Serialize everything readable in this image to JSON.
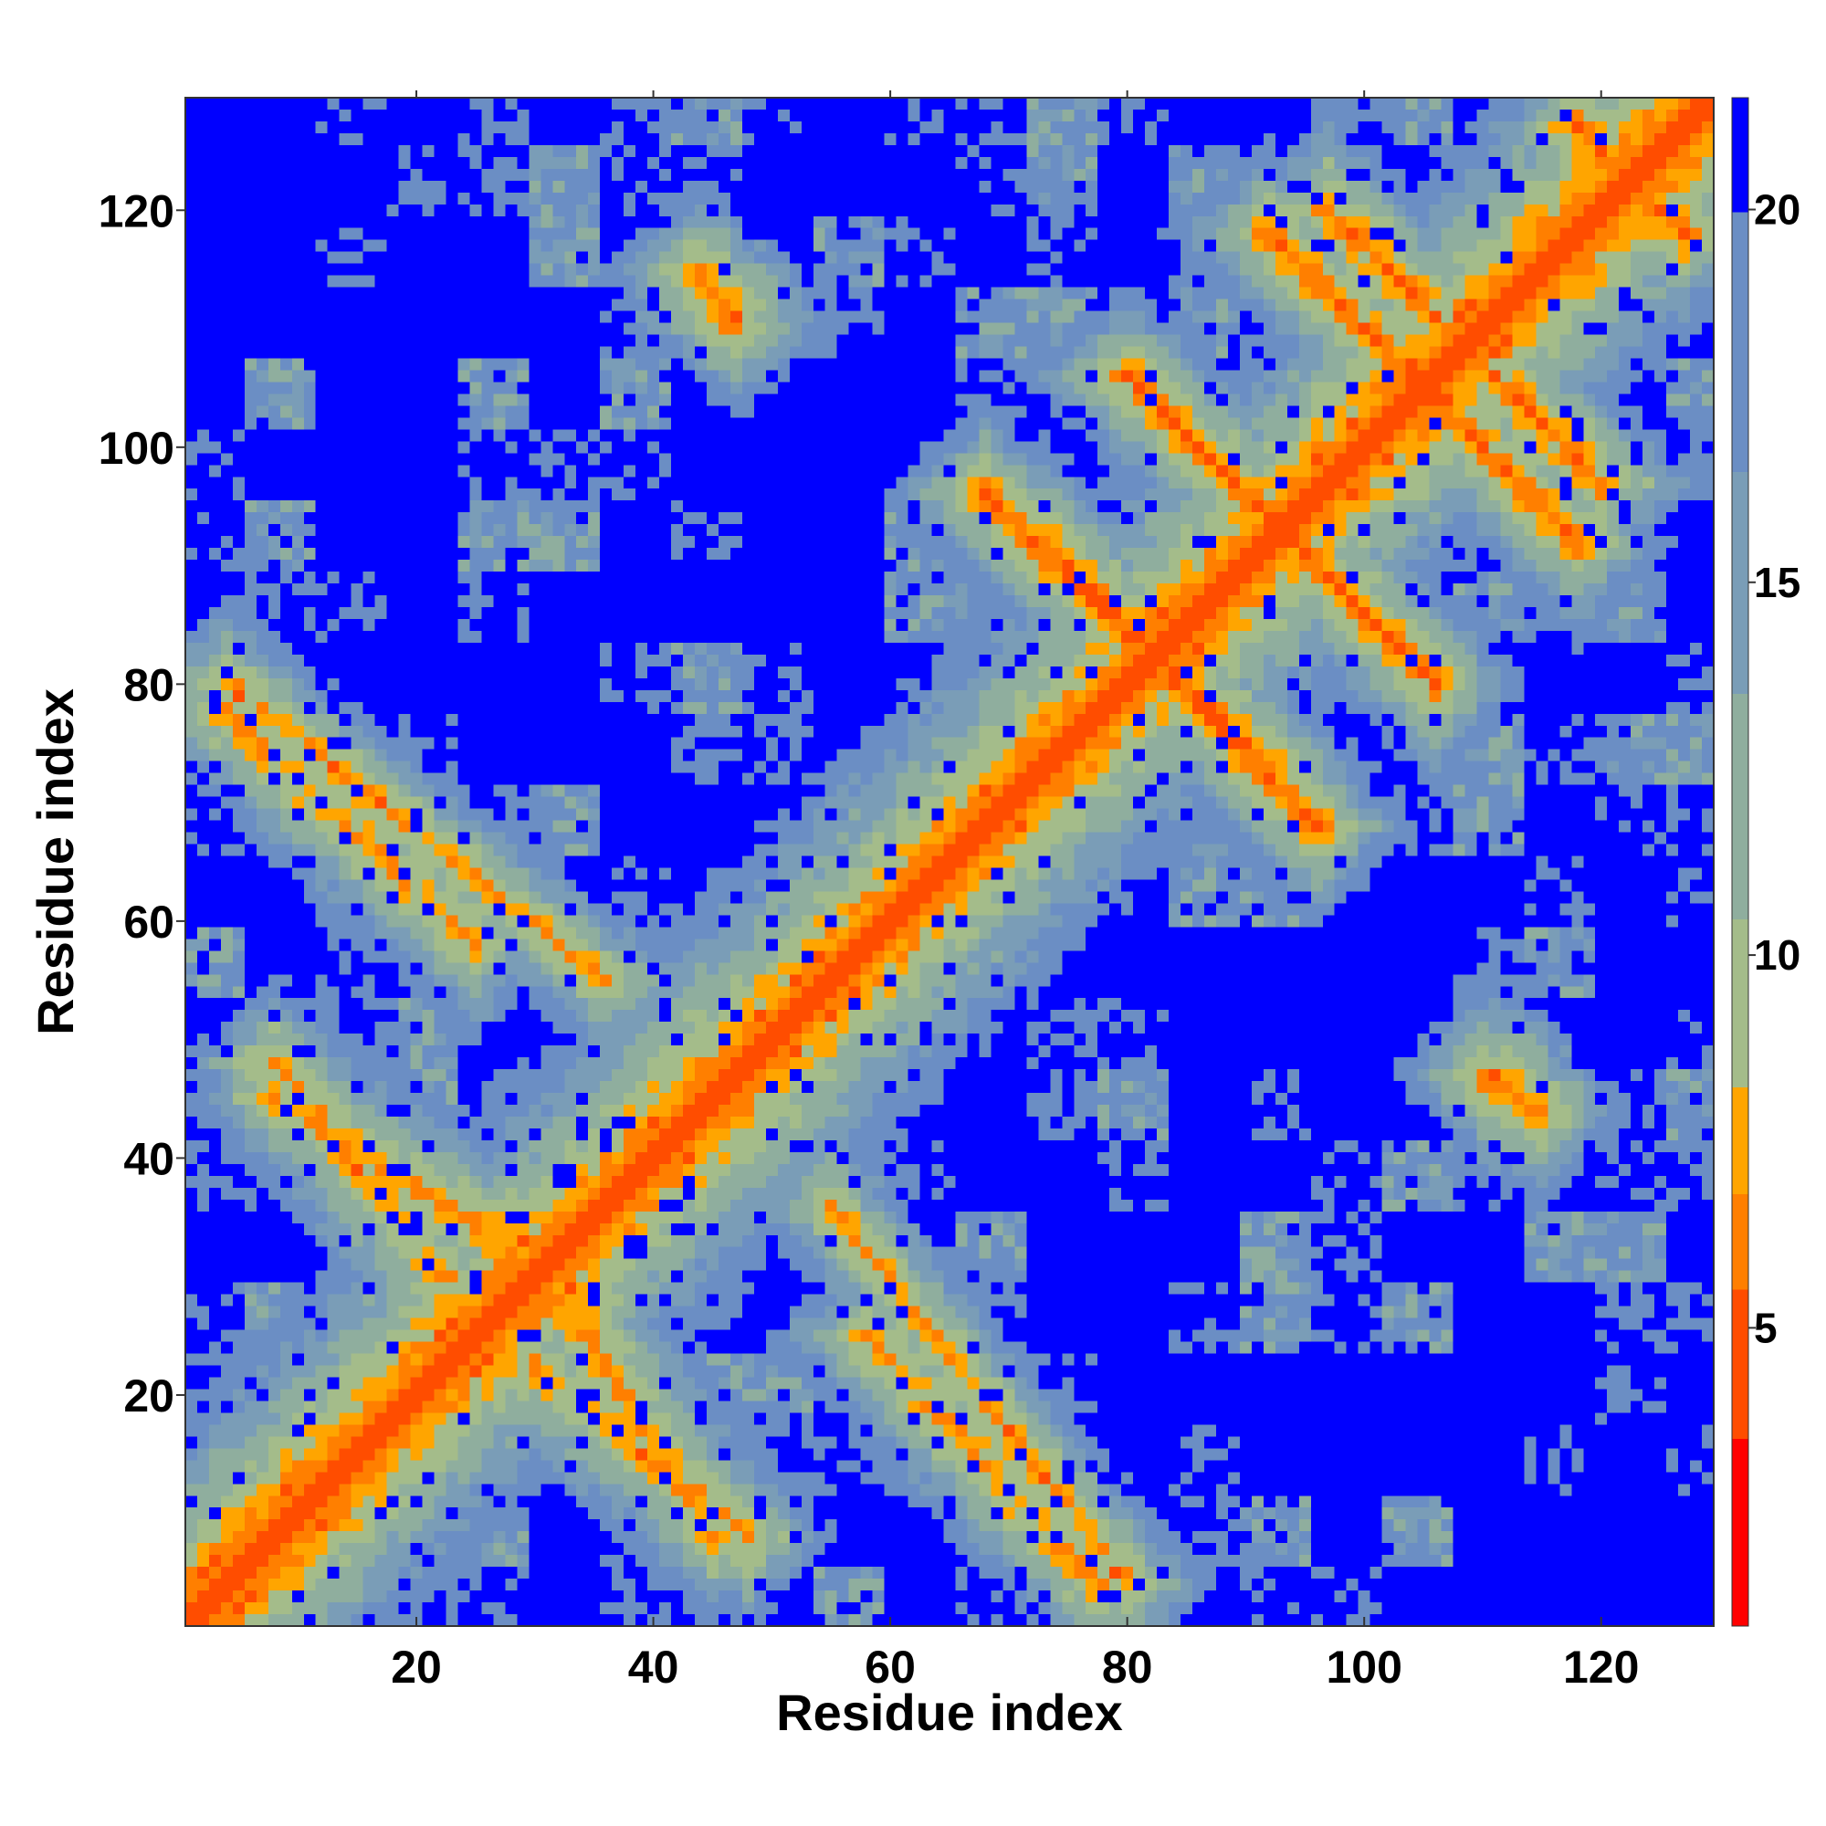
{
  "chart_data": {
    "type": "heatmap",
    "title": "",
    "xlabel": "Residue index",
    "ylabel": "Residue index",
    "n_residues": 129,
    "xlim": [
      1,
      129
    ],
    "ylim": [
      1,
      129
    ],
    "xticks": [
      20,
      40,
      60,
      80,
      100,
      120
    ],
    "yticks": [
      20,
      40,
      60,
      80,
      100,
      120
    ],
    "grid": false,
    "legend": "none",
    "colorbar": {
      "label": "",
      "range": [
        1,
        21.5
      ],
      "ticks": [
        5,
        10,
        15,
        20
      ],
      "orientation": "vertical",
      "placement": "right",
      "colors": [
        {
          "upto": 3.5,
          "color": "#ff0000"
        },
        {
          "upto": 5.5,
          "color": "#ff4d00"
        },
        {
          "upto": 6.8,
          "color": "#ff7f00"
        },
        {
          "upto": 8.2,
          "color": "#ffa500"
        },
        {
          "upto": 10.5,
          "color": "#a4bc8a"
        },
        {
          "upto": 13.5,
          "color": "#8fae9e"
        },
        {
          "upto": 16.5,
          "color": "#7a9db7"
        },
        {
          "upto": 20.0,
          "color": "#6b8ec4"
        },
        {
          "upto": 99,
          "color": "#0000ff"
        }
      ]
    },
    "structure": {
      "diagonal": "distance rises from about 3.8 at i=j to about 20 at |i-j|=18",
      "antiparallel_contacts": [
        {
          "i_range": [
            73,
            84
          ],
          "j_range": [
            92,
            81
          ],
          "min_distance": 5.5
        },
        {
          "i_range": [
            84,
            96
          ],
          "j_range": [
            80,
            68
          ],
          "min_distance": 5.5
        },
        {
          "i_range": [
            94,
            106
          ],
          "j_range": [
            92,
            80
          ],
          "min_distance": 5.5
        },
        {
          "i_range": [
            106,
            118
          ],
          "j_range": [
            104,
            92
          ],
          "min_distance": 5.5
        },
        {
          "i_range": [
            97,
            106
          ],
          "j_range": [
            120,
            111
          ],
          "min_distance": 5.5
        },
        {
          "i_range": [
            118,
            127
          ],
          "j_range": [
            127,
            118
          ],
          "min_distance": 5.5
        },
        {
          "i_range": [
            3,
            25
          ],
          "j_range": [
            78,
            58
          ],
          "min_distance": 6.5
        },
        {
          "i_range": [
            8,
            35
          ],
          "j_range": [
            45,
            28
          ],
          "min_distance": 6.5
        },
        {
          "i_range": [
            30,
            48
          ],
          "j_range": [
            22,
            8
          ],
          "min_distance": 6.5
        },
        {
          "i_range": [
            55,
            80
          ],
          "j_range": [
            36,
            4
          ],
          "min_distance": 6.5
        },
        {
          "i_range": [
            110,
            115
          ],
          "j_range": [
            47,
            44
          ],
          "min_distance": 6.0
        },
        {
          "i_range": [
            58,
            74
          ],
          "j_range": [
            60,
            75
          ],
          "min_distance": 6.0
        }
      ],
      "background": "most off-diagonal pairs exceed 20"
    }
  }
}
